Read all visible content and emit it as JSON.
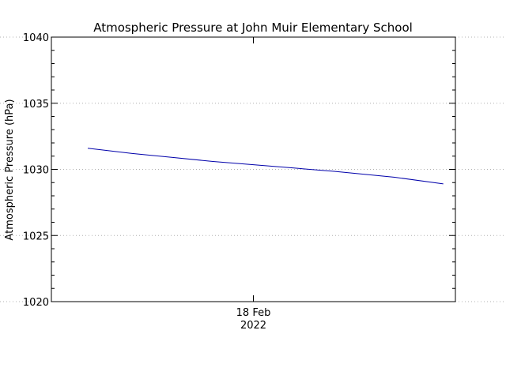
{
  "chart_data": {
    "type": "line",
    "title": "Atmospheric Pressure at John Muir Elementary School",
    "ylabel": "Atmospheric Pressure (hPa)",
    "xlabel": "",
    "ylim": [
      1020,
      1040
    ],
    "y_ticks": [
      1020,
      1025,
      1030,
      1035,
      1040
    ],
    "x_ticks": [
      {
        "label": "18 Feb",
        "sublabel": "2022",
        "pos": 0.5
      }
    ],
    "grid": true,
    "line_color": "#0000aa",
    "series": [
      {
        "x": [
          0.09,
          0.2,
          0.3,
          0.4,
          0.5,
          0.6,
          0.7,
          0.85,
          0.97
        ],
        "values": [
          1031.6,
          1031.2,
          1030.9,
          1030.6,
          1030.35,
          1030.1,
          1029.85,
          1029.4,
          1028.9
        ]
      }
    ]
  }
}
